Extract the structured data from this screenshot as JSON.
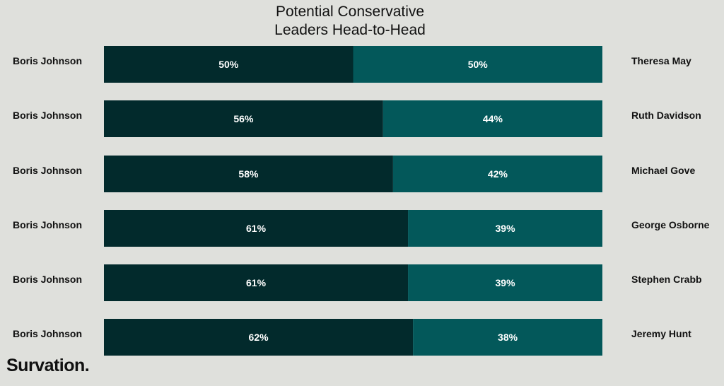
{
  "brand": {
    "logo_text": "Survation."
  },
  "colors": {
    "background": "#dfe0dc",
    "left_bar": "#022a2c",
    "right_bar": "#03585a",
    "bar_label": "#ffffff",
    "name_text": "#111111"
  },
  "chart_data": {
    "type": "bar",
    "orientation": "horizontal",
    "stacked": true,
    "title": "Potential Conservative Leaders Head-to-Head",
    "title_lines": [
      "Potential Conservative",
      "Leaders Head-to-Head"
    ],
    "xlabel": "",
    "ylabel": "",
    "xlim": [
      0,
      100
    ],
    "grid": false,
    "legend": "none",
    "categories": [
      "Boris Johnson vs Theresa May",
      "Boris Johnson vs Ruth Davidson",
      "Boris Johnson vs Michael Gove",
      "Boris Johnson vs George Osborne",
      "Boris Johnson vs Stephen Crabb",
      "Boris Johnson vs Jeremy Hunt"
    ],
    "rows": [
      {
        "left_name": "Boris Johnson",
        "right_name": "Theresa May",
        "left_value": 50,
        "right_value": 50,
        "left_label": "50%",
        "right_label": "50%"
      },
      {
        "left_name": "Boris Johnson",
        "right_name": "Ruth Davidson",
        "left_value": 56,
        "right_value": 44,
        "left_label": "56%",
        "right_label": "44%"
      },
      {
        "left_name": "Boris Johnson",
        "right_name": "Michael Gove",
        "left_value": 58,
        "right_value": 42,
        "left_label": "58%",
        "right_label": "42%"
      },
      {
        "left_name": "Boris Johnson",
        "right_name": "George Osborne",
        "left_value": 61,
        "right_value": 39,
        "left_label": "61%",
        "right_label": "39%"
      },
      {
        "left_name": "Boris Johnson",
        "right_name": "Stephen Crabb",
        "left_value": 61,
        "right_value": 39,
        "left_label": "61%",
        "right_label": "39%"
      },
      {
        "left_name": "Boris Johnson",
        "right_name": "Jeremy Hunt",
        "left_value": 62,
        "right_value": 38,
        "left_label": "62%",
        "right_label": "38%"
      }
    ]
  }
}
